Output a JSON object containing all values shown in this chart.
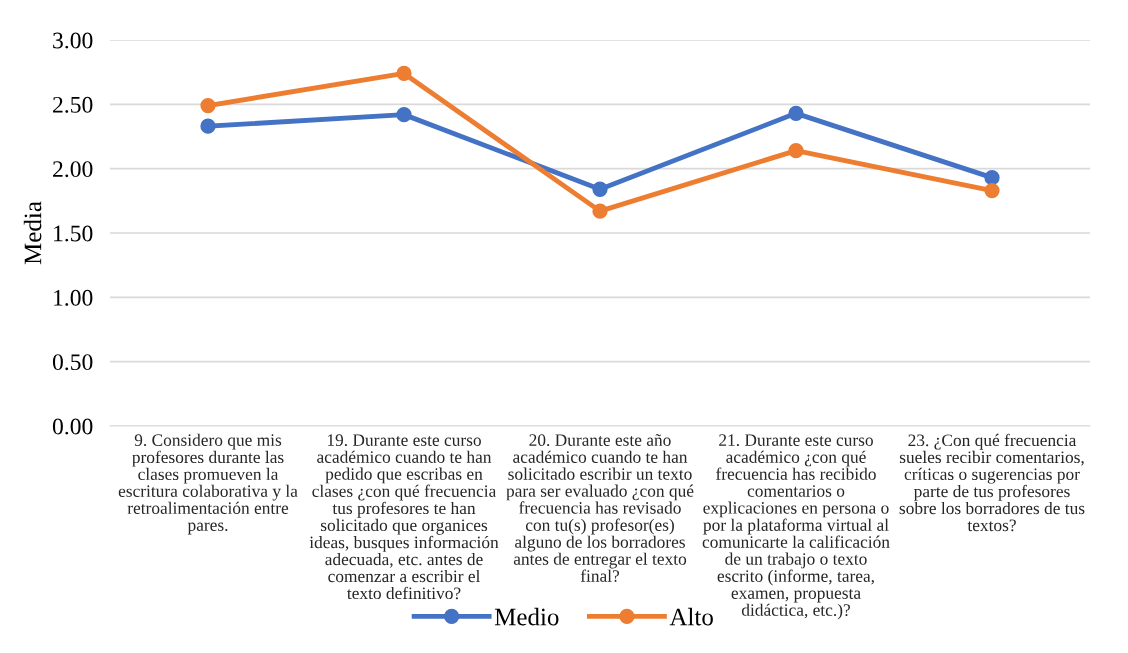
{
  "chart_data": {
    "type": "line",
    "ylabel": "Media",
    "categories": [
      "9. Considero que mis profesores durante las clases promueven la escritura colaborativa y la retroalimentación entre pares.",
      "19. Durante este curso académico cuando te han pedido que escribas en clases ¿con qué frecuencia tus profesores te han solicitado que organices ideas, busques información adecuada, etc. antes de comenzar a escribir el texto definitivo?",
      "20. Durante este año académico cuando te han solicitado escribir un texto para ser evaluado ¿con qué frecuencia has revisado con tu(s) profesor(es) alguno de los borradores antes de entregar el texto final?",
      "21. Durante este curso académico ¿con qué frecuencia has recibido comentarios o explicaciones en persona o por la plataforma virtual al comunicarte la calificación de un trabajo o texto escrito (informe, tarea, examen, propuesta didáctica, etc.)?",
      "23. ¿Con qué frecuencia sueles recibir comentarios, críticas o sugerencias por parte de tus profesores sobre los borradores de tus textos?"
    ],
    "series": [
      {
        "name": "Medio",
        "color": "#4472c4",
        "values": [
          2.33,
          2.42,
          1.84,
          2.43,
          1.93
        ]
      },
      {
        "name": "Alto",
        "color": "#ed7d31",
        "values": [
          2.49,
          2.74,
          1.67,
          2.14,
          1.83
        ]
      }
    ],
    "ylim": [
      0,
      3
    ],
    "yticks": [
      {
        "value": 0,
        "label": "0.00"
      },
      {
        "value": 0.5,
        "label": "0.50"
      },
      {
        "value": 1,
        "label": "1.00"
      },
      {
        "value": 1.5,
        "label": "1.50"
      },
      {
        "value": 2,
        "label": "2.00"
      },
      {
        "value": 2.5,
        "label": "2.50"
      },
      {
        "value": 3,
        "label": "3.00"
      }
    ],
    "grid": "y",
    "legend": "bottom",
    "marker": "circle",
    "line_style": "solid"
  }
}
